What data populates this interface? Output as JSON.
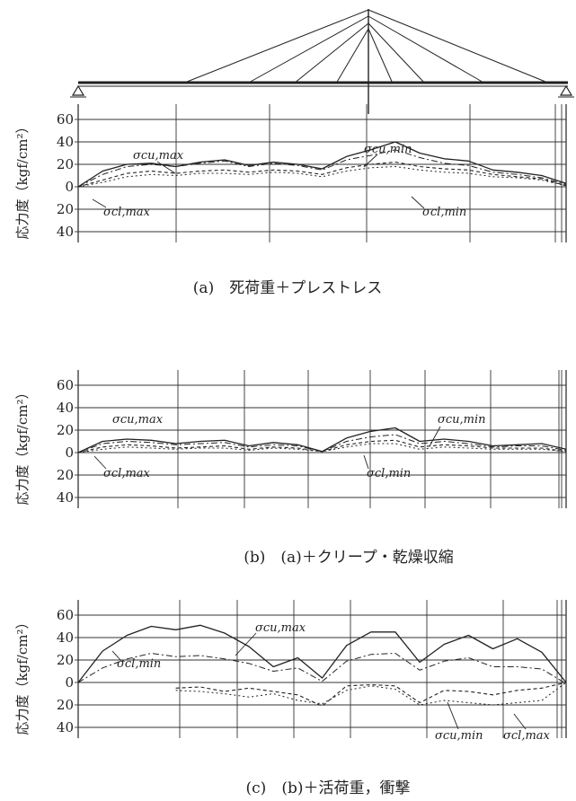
{
  "y_axis_label": "応力度（kgf/cm²）",
  "tick_labels": [
    "60",
    "40",
    "20",
    "0",
    "20",
    "40"
  ],
  "chart_data": [
    {
      "type": "line",
      "caption": "(a)　死荷重＋プレストレス",
      "x": [
        0,
        1,
        2,
        3,
        4,
        5,
        6,
        7,
        8,
        9,
        10,
        11,
        12,
        13,
        14,
        15,
        16,
        17,
        18,
        19,
        20
      ],
      "xlim": [
        0,
        20
      ],
      "ylim": [
        -45,
        65
      ],
      "annotations": [
        "σcu,max",
        "σcu,min",
        "σcl,max",
        "σcl,min"
      ],
      "series": [
        {
          "values": [
            0,
            14,
            20,
            21,
            18,
            22,
            24,
            19,
            22,
            20,
            16,
            27,
            33,
            40,
            30,
            25,
            23,
            15,
            13,
            10,
            3
          ]
        },
        {
          "values": [
            0,
            11,
            18,
            20,
            18,
            21,
            23,
            18,
            21,
            19,
            15,
            24,
            28,
            33,
            26,
            21,
            19,
            13,
            11,
            8,
            2
          ]
        },
        {
          "values": [
            0,
            6,
            12,
            14,
            12,
            14,
            15,
            13,
            15,
            14,
            11,
            17,
            20,
            22,
            18,
            16,
            15,
            11,
            9,
            7,
            1
          ]
        },
        {
          "values": [
            0,
            4,
            9,
            11,
            10,
            12,
            12,
            11,
            13,
            12,
            9,
            14,
            17,
            18,
            15,
            13,
            12,
            9,
            8,
            6,
            1
          ]
        }
      ]
    },
    {
      "type": "line",
      "caption": "(b)　(a)＋クリープ・乾燥収縮",
      "x": [
        0,
        1,
        2,
        3,
        4,
        5,
        6,
        7,
        8,
        9,
        10,
        11,
        12,
        13,
        14,
        15,
        16,
        17,
        18,
        19,
        20
      ],
      "xlim": [
        0,
        20
      ],
      "ylim": [
        -45,
        65
      ],
      "annotations": [
        "σcu,max",
        "σcu,min",
        "σcl,max",
        "σcl,min"
      ],
      "series": [
        {
          "values": [
            0,
            10,
            12,
            11,
            8,
            10,
            11,
            6,
            9,
            7,
            1,
            13,
            19,
            22,
            10,
            12,
            10,
            6,
            7,
            8,
            3
          ]
        },
        {
          "values": [
            0,
            8,
            10,
            9,
            7,
            8,
            9,
            5,
            7,
            6,
            1,
            10,
            14,
            16,
            8,
            10,
            8,
            5,
            6,
            6,
            2
          ]
        },
        {
          "values": [
            0,
            5,
            7,
            6,
            4,
            5,
            6,
            3,
            5,
            4,
            1,
            7,
            10,
            11,
            5,
            7,
            6,
            4,
            4,
            4,
            1
          ]
        },
        {
          "values": [
            0,
            3,
            5,
            4,
            3,
            4,
            4,
            2,
            4,
            3,
            1,
            5,
            8,
            8,
            3,
            5,
            4,
            3,
            3,
            3,
            1
          ]
        }
      ]
    },
    {
      "type": "line",
      "caption": "(c)　(b)＋活荷重，衝撃",
      "x": [
        0,
        1,
        2,
        3,
        4,
        5,
        6,
        7,
        8,
        9,
        10,
        11,
        12,
        13,
        14,
        15,
        16,
        17,
        18,
        19,
        20
      ],
      "xlim": [
        0,
        20
      ],
      "ylim": [
        -45,
        65
      ],
      "annotations": [
        "σcu,max",
        "σcl,min",
        "σcu,min",
        "σcl,max"
      ],
      "series": [
        {
          "values": [
            0,
            28,
            42,
            50,
            47,
            51,
            44,
            32,
            14,
            22,
            4,
            33,
            45,
            45,
            18,
            34,
            42,
            30,
            39,
            27,
            0
          ]
        },
        {
          "values": [
            0,
            13,
            21,
            26,
            23,
            24,
            21,
            17,
            10,
            13,
            1,
            19,
            25,
            26,
            11,
            19,
            22,
            14,
            14,
            12,
            -1
          ]
        },
        {
          "values": [
            null,
            null,
            null,
            null,
            -5,
            -4,
            -8,
            -5,
            -8,
            -11,
            -21,
            -3,
            -2,
            -3,
            -18,
            -7,
            -8,
            -11,
            -7,
            -5,
            0
          ]
        },
        {
          "values": [
            null,
            null,
            null,
            null,
            -7,
            -8,
            -10,
            -13,
            -10,
            -16,
            -19,
            -7,
            -3,
            -6,
            -20,
            -16,
            -18,
            -20,
            -18,
            -16,
            0
          ]
        }
      ]
    }
  ]
}
